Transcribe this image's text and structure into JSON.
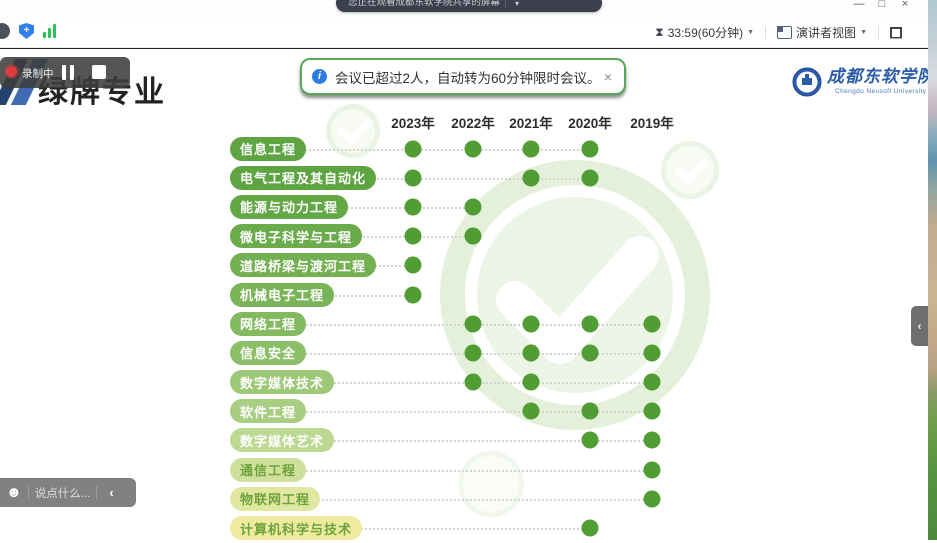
{
  "window": {
    "share_banner": "您正在观看成都东软学院共享的屏幕",
    "share_banner_dropdown": "▾",
    "controls": {
      "minimize": "—",
      "maximize": "□",
      "close": "×"
    }
  },
  "toolbar": {
    "timer": "33:59(60分钟)",
    "timer_dropdown": "▼",
    "view_mode": "演讲者视图",
    "view_dropdown": "▼"
  },
  "notification": {
    "info_icon": "i",
    "text": "会议已超过2人，自动转为60分钟限时会议。",
    "close": "×"
  },
  "recording": {
    "label": "录制中"
  },
  "slide": {
    "title": "绿牌专业",
    "university_name": "成都东软学院",
    "university_sub": "Chengdu Neusoft University"
  },
  "chat": {
    "emoji": "☻",
    "placeholder": "说点什么...",
    "collapse": "‹"
  },
  "right_handle": {
    "collapse": "‹"
  },
  "colors": {
    "accent_green": "#55a957",
    "info_blue": "#2a7de1",
    "brand_blue": "#2a5ca8",
    "record_red": "#e23b3b"
  },
  "chart_data": {
    "type": "scatter",
    "title": "绿牌专业",
    "categories": [
      "2023年",
      "2022年",
      "2021年",
      "2020年",
      "2019年"
    ],
    "rows": [
      {
        "label": "信息工程",
        "years": [
          "2023年",
          "2022年",
          "2021年",
          "2020年"
        ]
      },
      {
        "label": "电气工程及其自动化",
        "years": [
          "2023年",
          "2021年",
          "2020年"
        ]
      },
      {
        "label": "能源与动力工程",
        "years": [
          "2023年",
          "2022年"
        ]
      },
      {
        "label": "微电子科学与工程",
        "years": [
          "2023年",
          "2022年"
        ]
      },
      {
        "label": "道路桥梁与渡河工程",
        "years": [
          "2023年"
        ]
      },
      {
        "label": "机械电子工程",
        "years": [
          "2023年"
        ]
      },
      {
        "label": "网络工程",
        "years": [
          "2022年",
          "2021年",
          "2020年",
          "2019年"
        ]
      },
      {
        "label": "信息安全",
        "years": [
          "2022年",
          "2021年",
          "2020年",
          "2019年"
        ]
      },
      {
        "label": "数字媒体技术",
        "years": [
          "2022年",
          "2021年",
          "2019年"
        ]
      },
      {
        "label": "软件工程",
        "years": [
          "2021年",
          "2020年",
          "2019年"
        ]
      },
      {
        "label": "数字媒体艺术",
        "years": [
          "2020年",
          "2019年"
        ]
      },
      {
        "label": "通信工程",
        "years": [
          "2019年"
        ]
      },
      {
        "label": "物联网工程",
        "years": [
          "2019年"
        ]
      },
      {
        "label": "计算机科学与技术",
        "years": [
          "2020年"
        ]
      }
    ],
    "dot_color": "#4f9d33",
    "pill_colors": [
      "#5ea441",
      "#5ea441",
      "#63a846",
      "#6aac4b",
      "#72b051",
      "#7ab458",
      "#83ba60",
      "#8dbf69",
      "#9cc877",
      "#a8ce82",
      "#bcd992",
      "#cee09c",
      "#dfe7a0",
      "#efeb9e"
    ],
    "pill_text_colors": [
      "#ffffff",
      "#ffffff",
      "#ffffff",
      "#ffffff",
      "#ffffff",
      "#ffffff",
      "#ffffff",
      "#ffffff",
      "#ffffff",
      "#ffffff",
      "#ffffff",
      "#6fa33c",
      "#6fa33c",
      "#6fa33c"
    ],
    "grid": false,
    "legend_position": "none"
  }
}
